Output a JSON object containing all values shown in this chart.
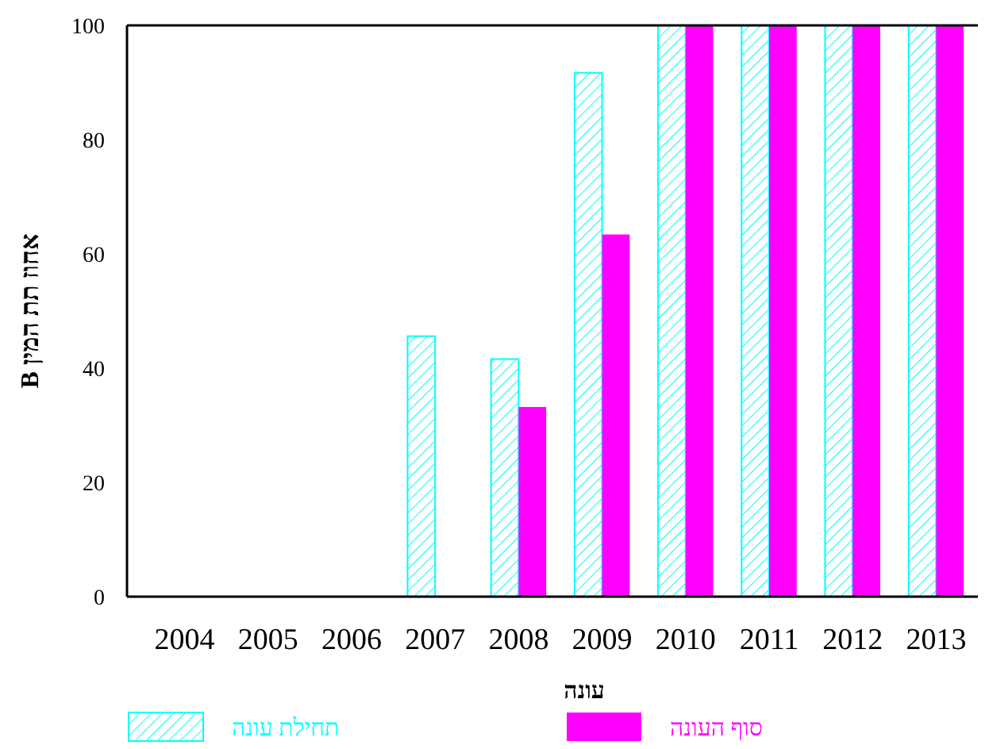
{
  "chart_data": {
    "type": "bar",
    "ylabel": "אחוז תת המין B",
    "xlabel": "עונה",
    "categories": [
      "2004",
      "2005",
      "2006",
      "2007",
      "2008",
      "2009",
      "2010",
      "2011",
      "2012",
      "2013"
    ],
    "series": [
      {
        "name": "תחילת עונה",
        "color": "#00ffff",
        "values": [
          0,
          0,
          0,
          45.6,
          41.6,
          91.7,
          100,
          100,
          100,
          100
        ]
      },
      {
        "name": "סוף העונה",
        "color": "#ff00ff",
        "values": [
          0,
          0,
          0,
          0,
          33.2,
          63.4,
          100,
          100,
          100,
          100
        ]
      }
    ],
    "ylim": [
      0,
      100
    ],
    "yticks": [
      0,
      20,
      40,
      60,
      80,
      100
    ],
    "grid": false,
    "legend": "bottom"
  }
}
